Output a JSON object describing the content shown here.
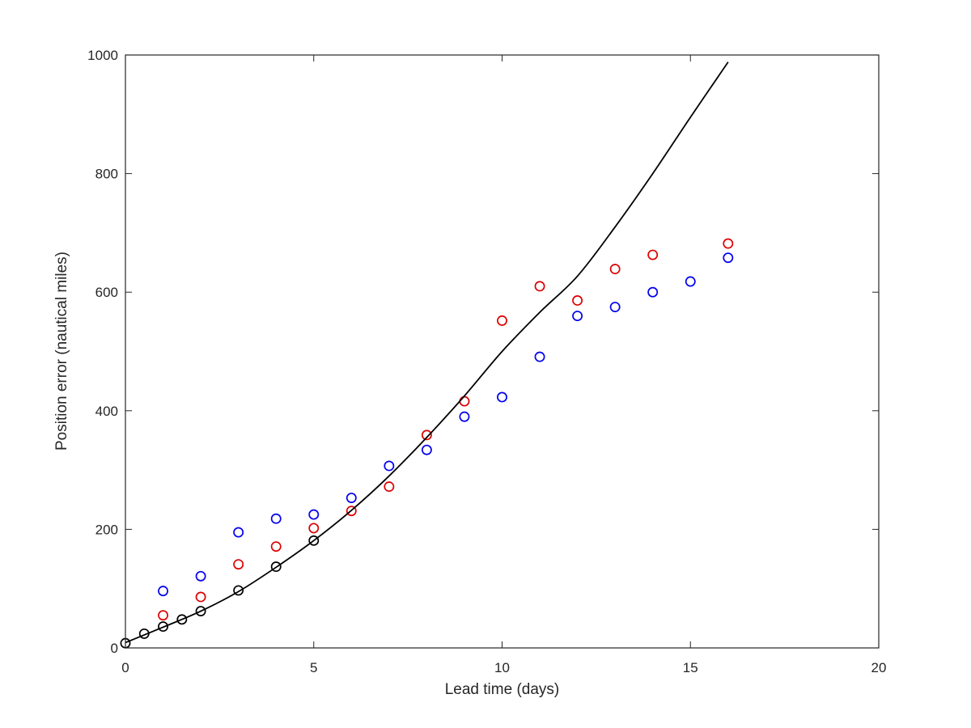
{
  "chart_data": {
    "type": "scatter",
    "title": "",
    "xlabel": "Lead time (days)",
    "ylabel": "Position error (nautical miles)",
    "xlim": [
      0,
      20
    ],
    "ylim": [
      0,
      1000
    ],
    "xticks": [
      "0",
      "5",
      "10",
      "15",
      "20"
    ],
    "yticks": [
      "0",
      "200",
      "400",
      "600",
      "800",
      "1000"
    ],
    "grid": false,
    "legend": "none",
    "series": [
      {
        "kind": "scatter",
        "color": "#0000ee",
        "marker": "open-circle",
        "x": [
          1,
          2,
          3,
          4,
          5,
          6,
          7,
          8,
          9,
          10,
          11,
          12,
          13,
          14,
          15,
          16
        ],
        "y": [
          96,
          121,
          195,
          218,
          225,
          253,
          307,
          334,
          390,
          423,
          491,
          560,
          575,
          600,
          618,
          658
        ]
      },
      {
        "kind": "scatter",
        "color": "#dd0000",
        "marker": "open-circle",
        "x": [
          1,
          2,
          3,
          4,
          5,
          6,
          7,
          8,
          9,
          10,
          11,
          12,
          13,
          14,
          16
        ],
        "y": [
          55,
          86,
          141,
          171,
          202,
          231,
          272,
          359,
          416,
          552,
          610,
          586,
          639,
          663,
          682
        ]
      },
      {
        "kind": "scatter",
        "color": "#000000",
        "marker": "open-circle",
        "x": [
          0,
          0.5,
          1,
          1.5,
          2,
          3,
          4,
          5
        ],
        "y": [
          8,
          24,
          36,
          48,
          62,
          97,
          137,
          181
        ]
      },
      {
        "kind": "line",
        "color": "#000000",
        "x": [
          0,
          1,
          2,
          3,
          4,
          5,
          6,
          7,
          8,
          9,
          10,
          11,
          12,
          13,
          14,
          15,
          16
        ],
        "y": [
          9,
          35,
          62,
          95,
          136,
          181,
          232,
          290,
          355,
          425,
          500,
          566,
          627,
          710,
          800,
          895,
          988
        ]
      }
    ]
  }
}
